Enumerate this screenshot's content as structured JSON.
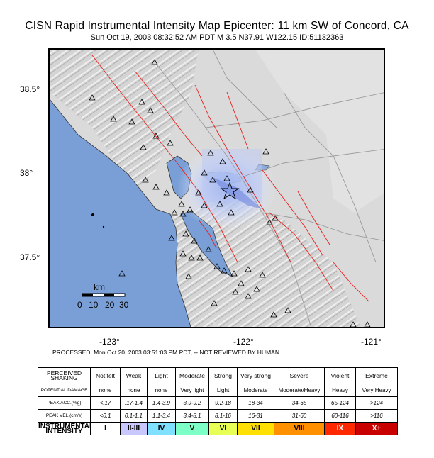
{
  "header": {
    "title": "CISN Rapid Instrumental Intensity Map Epicenter:  11 km SW  of Concord, CA",
    "subtitle": "Sun Oct 19, 2003 08:32:52 AM PDT   M 3.5   N37.91 W122.15    ID:51132363"
  },
  "map": {
    "lat_labels": [
      "38.5°",
      "38°",
      "37.5°"
    ],
    "lon_labels": [
      "-123°",
      "-122°",
      "-121°"
    ],
    "scale": {
      "unit": "km",
      "ticks": [
        "0",
        "10",
        "20",
        "30"
      ]
    },
    "colors": {
      "water": "#7a9fd6",
      "land": "#d8d8d8",
      "faults": "#e8201c",
      "shaking_light": "#c8d4f8",
      "shaking_strong": "#6f86e0",
      "epicenter": "#000000"
    }
  },
  "processed_note": "PROCESSED: Mon Oct 20, 2003 03:51:03 PM PDT, -- NOT REVIEWED BY HUMAN",
  "legend": {
    "rows": [
      {
        "head": "PERCEIVED SHAKING",
        "cells": [
          "Not felt",
          "Weak",
          "Light",
          "Moderate",
          "Strong",
          "Very strong",
          "Severe",
          "Violent",
          "Extreme"
        ]
      },
      {
        "head": "POTENTIAL DAMAGE",
        "cells": [
          "none",
          "none",
          "none",
          "Very light",
          "Light",
          "Moderate",
          "Moderate/Heavy",
          "Heavy",
          "Very Heavy"
        ]
      },
      {
        "head": "PEAK ACC.(%g)",
        "cells": [
          "<.17",
          ".17-1.4",
          "1.4-3.9",
          "3.9-9.2",
          "9.2-18",
          "18-34",
          "34-65",
          "65-124",
          ">124"
        ]
      },
      {
        "head": "PEAK VEL.(cm/s)",
        "cells": [
          "<0.1",
          "0.1-1.1",
          "1.1-3.4",
          "3.4-8.1",
          "8.1-16",
          "16-31",
          "31-60",
          "60-116",
          ">116"
        ]
      },
      {
        "head": "INSTRUMENTAL INTENSITY",
        "cells": [
          "I",
          "II-III",
          "IV",
          "V",
          "VI",
          "VII",
          "VIII",
          "IX",
          "X+"
        ]
      }
    ],
    "intensity_colors": [
      "#ffffff",
      "#c8c8ff",
      "#7fe0ff",
      "#7fffc8",
      "#e8ff55",
      "#ffe000",
      "#ff9000",
      "#ff2800",
      "#c80000"
    ]
  }
}
